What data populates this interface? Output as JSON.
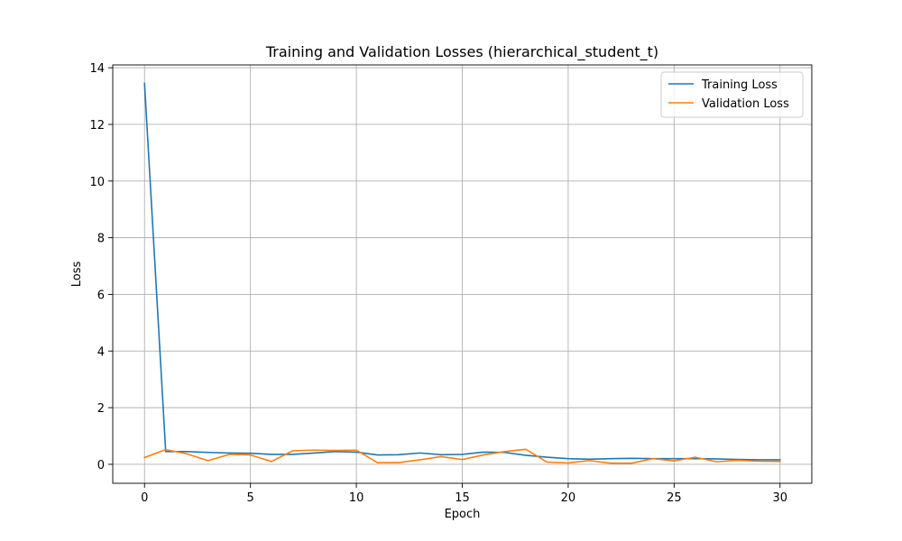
{
  "chart_data": {
    "type": "line",
    "title": "Training and Validation Losses (hierarchical_student_t)",
    "xlabel": "Epoch",
    "ylabel": "Loss",
    "xlim": [
      -1.5,
      31.5
    ],
    "ylim": [
      -0.67,
      14.1
    ],
    "xticks": [
      0,
      5,
      10,
      15,
      20,
      25,
      30
    ],
    "yticks": [
      0,
      2,
      4,
      6,
      8,
      10,
      12,
      14
    ],
    "grid": true,
    "legend_position": "top-right",
    "x": [
      0,
      1,
      2,
      3,
      4,
      5,
      6,
      7,
      8,
      9,
      10,
      11,
      12,
      13,
      14,
      15,
      16,
      17,
      18,
      19,
      20,
      21,
      22,
      23,
      24,
      25,
      26,
      27,
      28,
      29,
      30
    ],
    "series": [
      {
        "name": "Training Loss",
        "color": "#1f77b4",
        "values": [
          13.45,
          0.45,
          0.45,
          0.42,
          0.4,
          0.39,
          0.35,
          0.35,
          0.4,
          0.45,
          0.43,
          0.33,
          0.34,
          0.4,
          0.34,
          0.35,
          0.43,
          0.42,
          0.32,
          0.25,
          0.2,
          0.18,
          0.2,
          0.21,
          0.2,
          0.2,
          0.2,
          0.19,
          0.17,
          0.16,
          0.16
        ]
      },
      {
        "name": "Validation Loss",
        "color": "#ff7f0e",
        "values": [
          0.24,
          0.52,
          0.37,
          0.13,
          0.35,
          0.33,
          0.1,
          0.48,
          0.5,
          0.49,
          0.5,
          0.06,
          0.06,
          0.16,
          0.27,
          0.17,
          0.33,
          0.45,
          0.53,
          0.08,
          0.05,
          0.13,
          0.04,
          0.04,
          0.2,
          0.12,
          0.25,
          0.09,
          0.14,
          0.11,
          0.1
        ]
      }
    ]
  }
}
